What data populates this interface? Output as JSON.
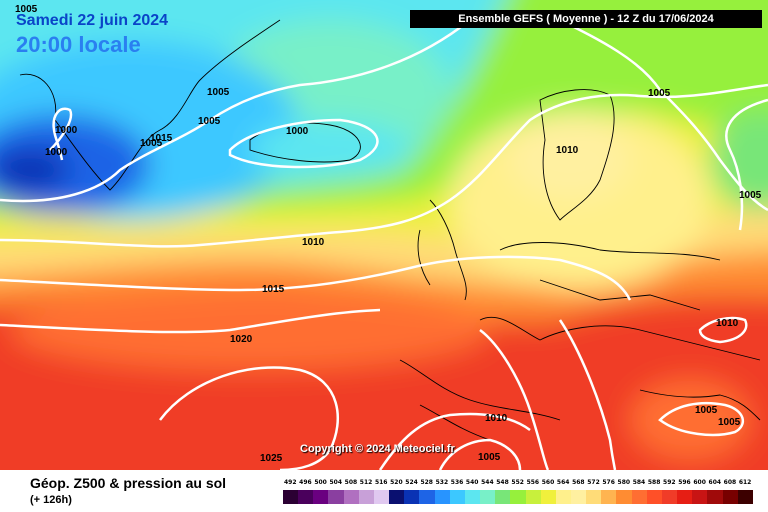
{
  "header": {
    "date": "Samedi 22 juin 2024",
    "time": "20:00 locale",
    "model": "Ensemble GEFS  ( Moyenne )  -  12 Z du 17/06/2024"
  },
  "copyright": "Copyright © 2024 Meteociel.fr",
  "footer": {
    "title": "Géop. Z500 & pression au sol",
    "subtitle": "(+ 126h)"
  },
  "isobars": [
    {
      "label": "1005"
    },
    {
      "label": "1005"
    },
    {
      "label": "1005"
    },
    {
      "label": "1000"
    },
    {
      "label": "1000"
    },
    {
      "label": "1005"
    },
    {
      "label": "1000"
    },
    {
      "label": "1015"
    },
    {
      "label": "1010"
    },
    {
      "label": "1005"
    },
    {
      "label": "1010"
    },
    {
      "label": "1015"
    },
    {
      "label": "1020"
    },
    {
      "label": "1010"
    },
    {
      "label": "1025"
    },
    {
      "label": "1005"
    },
    {
      "label": "1005"
    },
    {
      "label": "1005"
    },
    {
      "label": "1010"
    }
  ],
  "scale": {
    "labels": [
      "492",
      "496",
      "500",
      "504",
      "508",
      "512",
      "516",
      "520",
      "524",
      "528",
      "532",
      "536",
      "540",
      "544",
      "548",
      "552",
      "556",
      "560",
      "564",
      "568",
      "572",
      "576",
      "580",
      "584",
      "588",
      "592",
      "596",
      "600",
      "604",
      "608",
      "612"
    ],
    "colors": [
      "#2b0033",
      "#4a005c",
      "#6a0080",
      "#8a3fa0",
      "#b070c0",
      "#c8a0d8",
      "#e0c8f0",
      "#0a1070",
      "#0a32b4",
      "#1e64e6",
      "#2894ff",
      "#3cc8ff",
      "#5ce6f0",
      "#78f0c8",
      "#78e678",
      "#96f03c",
      "#c8f03c",
      "#f0f03c",
      "#fff08c",
      "#fff0a0",
      "#ffdc78",
      "#ffb450",
      "#ff8c32",
      "#ff6e32",
      "#ff5028",
      "#f03c28",
      "#e61e14",
      "#c81414",
      "#a00a0a",
      "#780000",
      "#3c0000"
    ]
  },
  "colors": {
    "isobar": "#ffffff",
    "header_bar": "#000000"
  }
}
